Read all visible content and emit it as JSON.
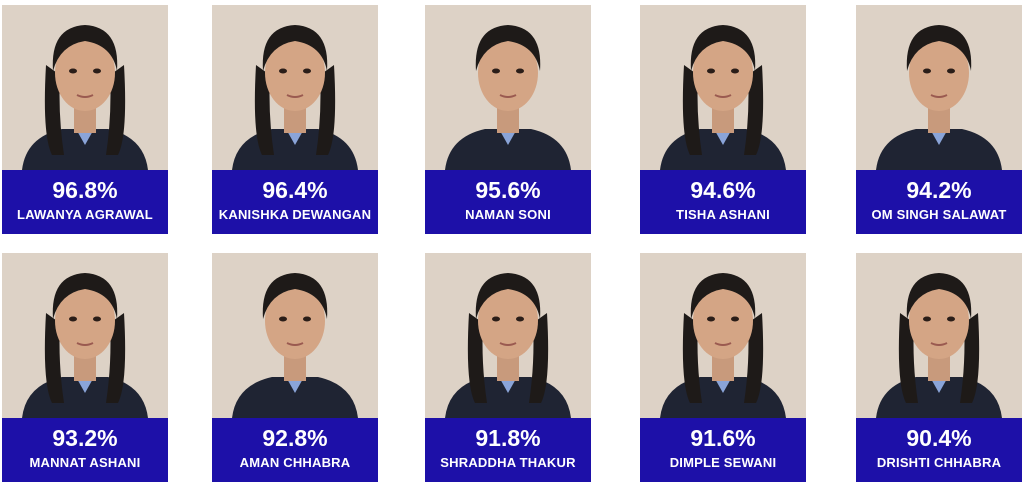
{
  "students": [
    {
      "percent": "96.8%",
      "name": "LAWANYA AGRAWAL"
    },
    {
      "percent": "96.4%",
      "name": "KANISHKA DEWANGAN"
    },
    {
      "percent": "95.6%",
      "name": "NAMAN SONI"
    },
    {
      "percent": "94.6%",
      "name": "TISHA ASHANI"
    },
    {
      "percent": "94.2%",
      "name": "OM SINGH SALAWAT"
    },
    {
      "percent": "93.2%",
      "name": "MANNAT ASHANI"
    },
    {
      "percent": "92.8%",
      "name": "AMAN CHHABRA"
    },
    {
      "percent": "91.8%",
      "name": "SHRADDHA THAKUR"
    },
    {
      "percent": "91.6%",
      "name": "DIMPLE SEWANI"
    },
    {
      "percent": "90.4%",
      "name": "DRISHTI CHHABRA"
    }
  ]
}
